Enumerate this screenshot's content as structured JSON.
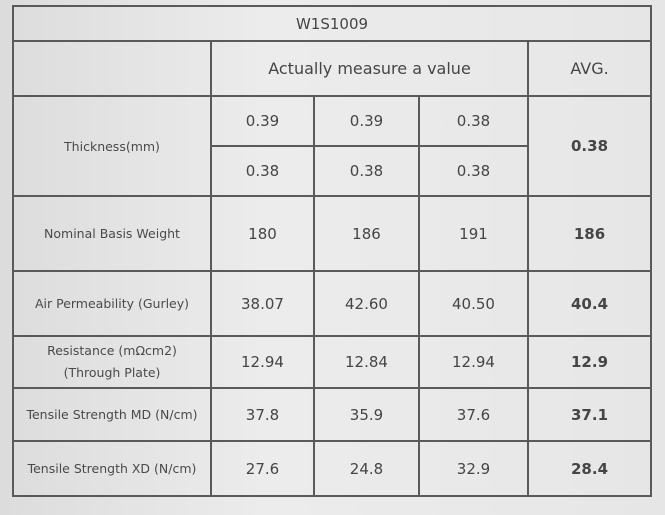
{
  "title": "W1S1009",
  "header": {
    "measure": "Actually measure a value",
    "avg": "AVG."
  },
  "thickness": {
    "label": "Thickness(mm)",
    "values_1": [
      "0.39",
      "0.39",
      "0.38"
    ],
    "values_2": [
      "0.38",
      "0.38",
      "0.38"
    ],
    "avg": "0.38"
  },
  "rows": [
    {
      "label": [
        "Nominal Basis Weight"
      ],
      "values": [
        "180",
        "186",
        "191"
      ],
      "avg": "186"
    },
    {
      "label": [
        "Air Permeability (Gurley)"
      ],
      "values": [
        "38.07",
        "42.60",
        "40.50"
      ],
      "avg": "40.4"
    },
    {
      "label": [
        "Resistance (mΩcm2)",
        "(Through Plate)"
      ],
      "values": [
        "12.94",
        "12.84",
        "12.94"
      ],
      "avg": "12.9"
    },
    {
      "label": [
        "Tensile Strength MD (N/cm)"
      ],
      "values": [
        "37.8",
        "35.9",
        "37.6"
      ],
      "avg": "37.1"
    },
    {
      "label": [
        "Tensile Strength XD (N/cm)"
      ],
      "values": [
        "27.6",
        "24.8",
        "32.9"
      ],
      "avg": "28.4"
    }
  ]
}
